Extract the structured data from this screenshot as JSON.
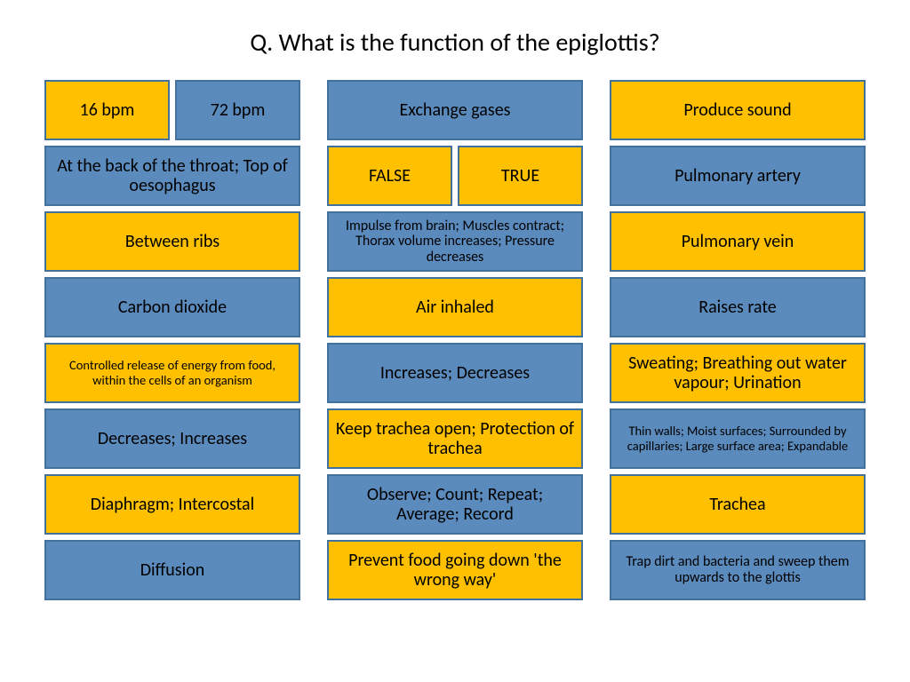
{
  "title": "Q. What is the function of the epiglottis?",
  "colors": {
    "blue_fill": "#5b8bbd",
    "blue_border": "#41719c",
    "orange_fill": "#ffc000",
    "orange_border": "#41719c"
  },
  "columns": [
    [
      {
        "type": "split",
        "cells": [
          {
            "text": "16 bpm",
            "fill": "orange"
          },
          {
            "text": "72 bpm",
            "fill": "blue"
          }
        ]
      },
      {
        "text": "At the back of the throat; Top of oesophagus",
        "fill": "blue"
      },
      {
        "text": "Between ribs",
        "fill": "orange"
      },
      {
        "text": "Carbon dioxide",
        "fill": "blue"
      },
      {
        "text": "Controlled release of energy from food, within the cells of an organism",
        "fill": "orange",
        "size": "tiny"
      },
      {
        "text": "Decreases; Increases",
        "fill": "blue"
      },
      {
        "text": "Diaphragm; Intercostal",
        "fill": "orange"
      },
      {
        "text": "Diffusion",
        "fill": "blue"
      }
    ],
    [
      {
        "text": "Exchange gases",
        "fill": "blue"
      },
      {
        "type": "split",
        "cells": [
          {
            "text": "FALSE",
            "fill": "orange"
          },
          {
            "text": "TRUE",
            "fill": "orange"
          }
        ]
      },
      {
        "text": "Impulse from brain; Muscles contract; Thorax volume increases; Pressure decreases",
        "fill": "blue",
        "size": "small"
      },
      {
        "text": "Air inhaled",
        "fill": "orange"
      },
      {
        "text": "Increases; Decreases",
        "fill": "blue"
      },
      {
        "text": "Keep trachea open; Protection of trachea",
        "fill": "orange"
      },
      {
        "text": "Observe; Count; Repeat; Average; Record",
        "fill": "blue"
      },
      {
        "text": "Prevent food going down 'the wrong way'",
        "fill": "orange"
      }
    ],
    [
      {
        "text": "Produce sound",
        "fill": "orange"
      },
      {
        "text": "Pulmonary artery",
        "fill": "blue"
      },
      {
        "text": "Pulmonary vein",
        "fill": "orange"
      },
      {
        "text": "Raises rate",
        "fill": "blue"
      },
      {
        "text": "Sweating; Breathing out water vapour; Urination",
        "fill": "orange"
      },
      {
        "text": "Thin walls; Moist surfaces; Surrounded by capillaries; Large surface area; Expandable",
        "fill": "blue",
        "size": "tiny"
      },
      {
        "text": "Trachea",
        "fill": "orange"
      },
      {
        "text": "Trap dirt and bacteria and sweep them upwards to the glottis",
        "fill": "blue",
        "size": "small"
      }
    ]
  ]
}
